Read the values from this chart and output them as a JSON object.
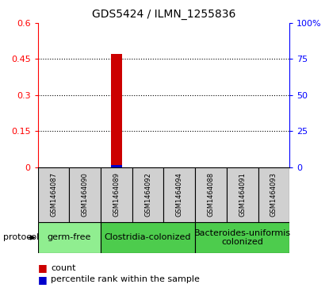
{
  "title": "GDS5424 / ILMN_1255836",
  "samples": [
    "GSM1464087",
    "GSM1464090",
    "GSM1464089",
    "GSM1464092",
    "GSM1464094",
    "GSM1464088",
    "GSM1464091",
    "GSM1464093"
  ],
  "count_values": [
    0,
    0,
    0.47,
    0,
    0,
    0,
    0,
    0
  ],
  "percentile_values": [
    0,
    0,
    1.5,
    0,
    0,
    0,
    0,
    0
  ],
  "red_bar_color": "#cc0000",
  "blue_bar_color": "#0000cc",
  "ylim_left": [
    0,
    0.6
  ],
  "ylim_right": [
    0,
    100
  ],
  "yticks_left": [
    0,
    0.15,
    0.3,
    0.45,
    0.6
  ],
  "ytick_labels_left": [
    "0",
    "0.15",
    "0.3",
    "0.45",
    "0.6"
  ],
  "yticks_right": [
    0,
    25,
    50,
    75,
    100
  ],
  "ytick_labels_right": [
    "0",
    "25",
    "50",
    "75",
    "100%"
  ],
  "group_positions": [
    {
      "start": 0,
      "end": 1,
      "label": "germ-free",
      "color": "#90ee90"
    },
    {
      "start": 2,
      "end": 4,
      "label": "Clostridia-colonized",
      "color": "#4dcc4d"
    },
    {
      "start": 5,
      "end": 7,
      "label": "Bacteroides-uniformis\ncolonized",
      "color": "#4dcc4d"
    }
  ],
  "protocol_label": "protocol",
  "legend_count_label": "count",
  "legend_percentile_label": "percentile rank within the sample",
  "bg_color": "#ffffff",
  "sample_box_color": "#d0d0d0",
  "bar_width": 0.35,
  "title_fontsize": 10,
  "tick_fontsize": 8,
  "sample_fontsize": 6,
  "group_fontsize": 8,
  "legend_fontsize": 8
}
